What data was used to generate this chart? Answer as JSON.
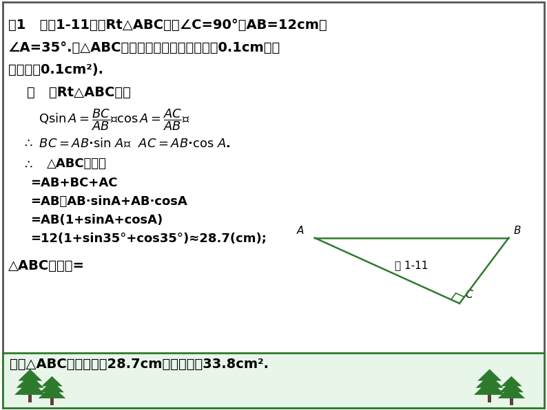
{
  "bg_color": "#ffffff",
  "border_color": "#555555",
  "bottom_bar_color": "#e8f5e9",
  "bottom_bar_border": "#2d7a2d",
  "text_color": "#000000",
  "green_color": "#2d7a2d",
  "fig_label": "图 1-11",
  "tri_A": [
    0.575,
    0.42
  ],
  "tri_B": [
    0.93,
    0.42
  ],
  "tri_C": [
    0.84,
    0.26
  ],
  "tri_color": "#2d7a2d",
  "sq_size": 0.018
}
